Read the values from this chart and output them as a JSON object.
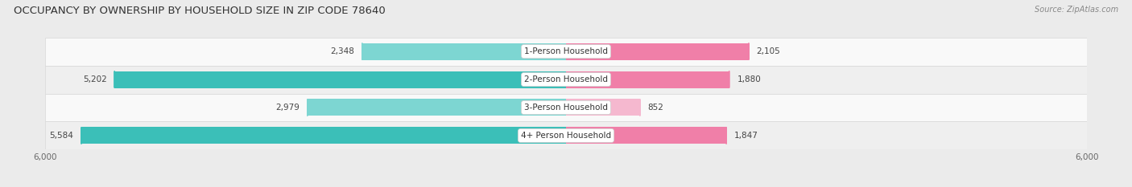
{
  "title": "OCCUPANCY BY OWNERSHIP BY HOUSEHOLD SIZE IN ZIP CODE 78640",
  "source": "Source: ZipAtlas.com",
  "categories": [
    "1-Person Household",
    "2-Person Household",
    "3-Person Household",
    "4+ Person Household"
  ],
  "owner_values": [
    2348,
    5202,
    2979,
    5584
  ],
  "renter_values": [
    2105,
    1880,
    852,
    1847
  ],
  "max_scale": 6000,
  "owner_color_full": "#3BBFB8",
  "owner_color_light": "#7DD6D2",
  "renter_color_full": "#F07FA8",
  "renter_color_light": "#F5B8CF",
  "bg_color": "#ebebeb",
  "row_bg_color": "#f9f9f9",
  "row_alt_bg": "#efefef",
  "title_fontsize": 9.5,
  "label_fontsize": 7.5,
  "value_fontsize": 7.5,
  "tick_fontsize": 7.5,
  "source_fontsize": 7,
  "legend_fontsize": 7.5
}
